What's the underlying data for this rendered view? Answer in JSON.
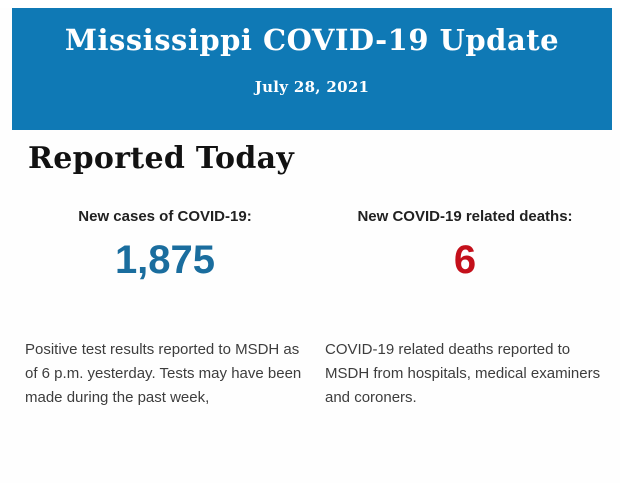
{
  "header": {
    "title": "Mississippi COVID-19 Update",
    "date": "July 28, 2021",
    "background_color": "#0f79b5",
    "text_color": "#ffffff"
  },
  "main": {
    "heading": "Reported Today",
    "stats": [
      {
        "label": "New cases of COVID-19:",
        "value": "1,875",
        "value_color": "#1a6d9e",
        "description": "Positive test results reported to MSDH as of 6 p.m. yesterday. Tests may have been made during the past week,"
      },
      {
        "label": "New COVID-19 related deaths:",
        "value": "6",
        "value_color": "#c4101b",
        "description": "COVID-19 related deaths reported to MSDH from hospitals, medical examiners and coroners."
      }
    ]
  }
}
